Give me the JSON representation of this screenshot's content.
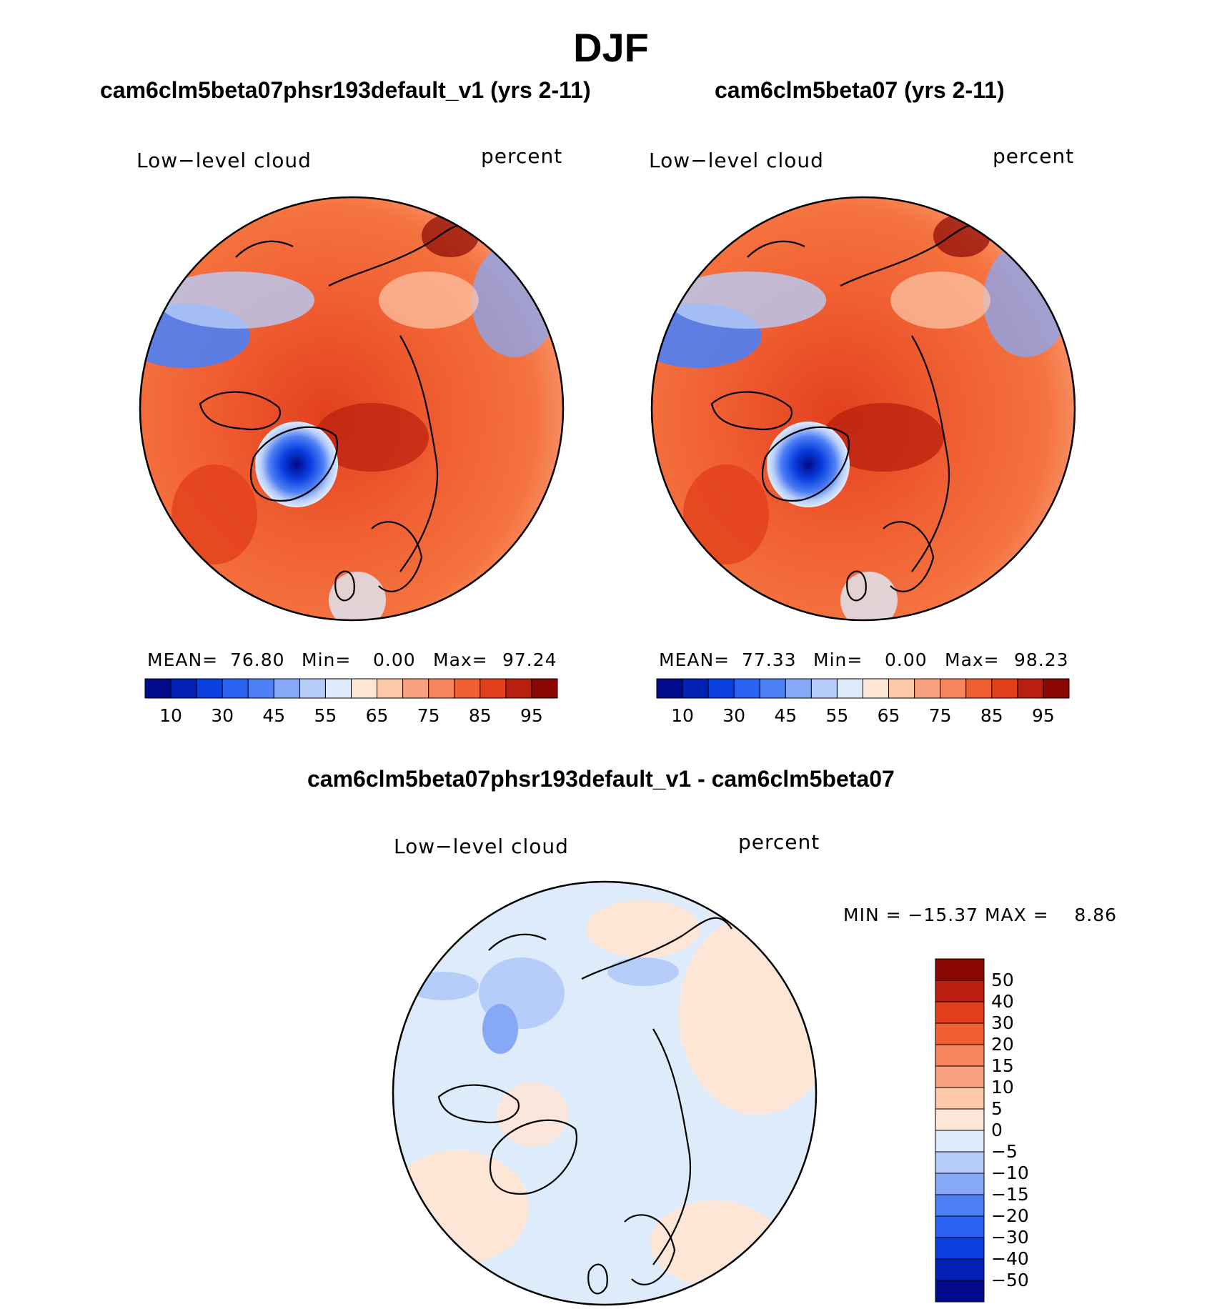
{
  "figure_title": "DJF",
  "panels": {
    "left": {
      "title": "cam6clm5beta07phsr193default_v1 (yrs 2-11)",
      "variable": "Low−level cloud",
      "units": "percent",
      "stats_label_mean": "MEAN=",
      "stats_mean": "76.80",
      "stats_label_min": "Min=",
      "stats_min": "0.00",
      "stats_label_max": "Max=",
      "stats_max": "97.24"
    },
    "right": {
      "title": "cam6clm5beta07 (yrs 2-11)",
      "variable": "Low−level cloud",
      "units": "percent",
      "stats_label_mean": "MEAN=",
      "stats_mean": "77.33",
      "stats_label_min": "Min=",
      "stats_min": "0.00",
      "stats_label_max": "Max=",
      "stats_max": "98.23"
    },
    "diff": {
      "title": "cam6clm5beta07phsr193default_v1 - cam6clm5beta07",
      "variable": "Low−level cloud",
      "units": "percent",
      "minmax_text": "MIN = −15.37 MAX =    8.86"
    }
  },
  "chart_data": [
    {
      "type": "heatmap",
      "projection": "north-polar-stereographic",
      "title": "cam6clm5beta07phsr193default_v1 (yrs 2-11)",
      "variable": "Low-level cloud",
      "units": "percent",
      "mean": 76.8,
      "min": 0.0,
      "max": 97.24,
      "colorbar": {
        "orientation": "horizontal",
        "tick_labels": [
          "10",
          "30",
          "45",
          "55",
          "65",
          "75",
          "85",
          "95"
        ],
        "colors": [
          "#000a8a",
          "#0321b5",
          "#0a3fe0",
          "#2a63f2",
          "#4d7ff5",
          "#86a8f7",
          "#b7cdf9",
          "#deebfb",
          "#fde6d6",
          "#fcc9aa",
          "#f9a27f",
          "#f7845c",
          "#f05e32",
          "#e2401d",
          "#b81f0e",
          "#8a0703"
        ]
      }
    },
    {
      "type": "heatmap",
      "projection": "north-polar-stereographic",
      "title": "cam6clm5beta07 (yrs 2-11)",
      "variable": "Low-level cloud",
      "units": "percent",
      "mean": 77.33,
      "min": 0.0,
      "max": 98.23,
      "colorbar": {
        "orientation": "horizontal",
        "tick_labels": [
          "10",
          "30",
          "45",
          "55",
          "65",
          "75",
          "85",
          "95"
        ],
        "colors": [
          "#000a8a",
          "#0321b5",
          "#0a3fe0",
          "#2a63f2",
          "#4d7ff5",
          "#86a8f7",
          "#b7cdf9",
          "#deebfb",
          "#fde6d6",
          "#fcc9aa",
          "#f9a27f",
          "#f7845c",
          "#f05e32",
          "#e2401d",
          "#b81f0e",
          "#8a0703"
        ]
      }
    },
    {
      "type": "heatmap",
      "projection": "north-polar-stereographic",
      "title": "cam6clm5beta07phsr193default_v1 - cam6clm5beta07",
      "variable": "Low-level cloud",
      "units": "percent",
      "min": -15.37,
      "max": 8.86,
      "colorbar": {
        "orientation": "vertical",
        "tick_labels": [
          "50",
          "40",
          "30",
          "20",
          "15",
          "10",
          "5",
          "0",
          "−5",
          "−10",
          "−15",
          "−20",
          "−30",
          "−40",
          "−50"
        ],
        "colors": [
          "#8a0703",
          "#b81f0e",
          "#e2401d",
          "#f05e32",
          "#f7845c",
          "#f9a27f",
          "#fcc9aa",
          "#fde6d6",
          "#deebfb",
          "#b7cdf9",
          "#86a8f7",
          "#4d7ff5",
          "#2a63f2",
          "#0a3fe0",
          "#0321b5",
          "#000a8a"
        ]
      }
    }
  ]
}
